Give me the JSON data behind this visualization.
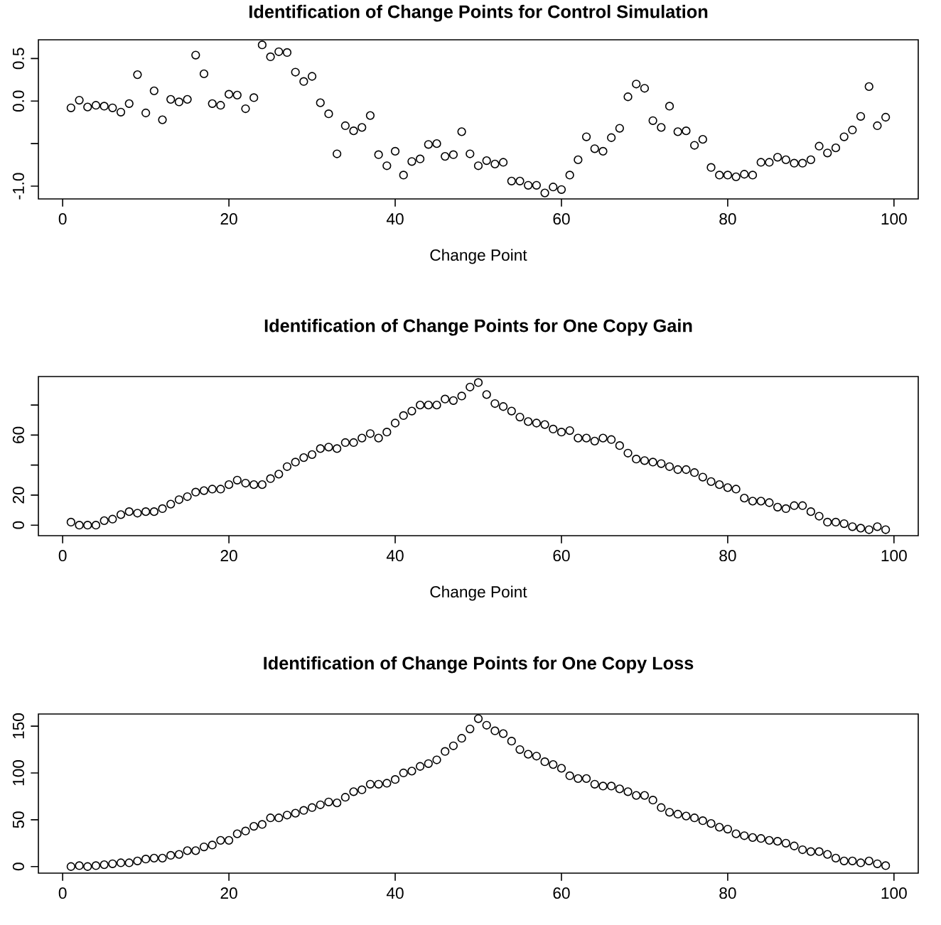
{
  "chart_data": [
    {
      "type": "scatter",
      "title": "Identification of Change Points for Control Simulation",
      "xlabel": "Change Point",
      "marker": "circle",
      "color": "#000000",
      "x": [
        1,
        2,
        3,
        4,
        5,
        6,
        7,
        8,
        9,
        10,
        11,
        12,
        13,
        14,
        15,
        16,
        17,
        18,
        19,
        20,
        21,
        22,
        23,
        24,
        25,
        26,
        27,
        28,
        29,
        30,
        31,
        32,
        33,
        34,
        35,
        36,
        37,
        38,
        39,
        40,
        41,
        42,
        43,
        44,
        45,
        46,
        47,
        48,
        49,
        50,
        51,
        52,
        53,
        54,
        55,
        56,
        57,
        58,
        59,
        60,
        61,
        62,
        63,
        64,
        65,
        66,
        67,
        68,
        69,
        70,
        71,
        72,
        73,
        74,
        75,
        76,
        77,
        78,
        79,
        80,
        81,
        82,
        83,
        84,
        85,
        86,
        87,
        88,
        89,
        90,
        91,
        92,
        93,
        94,
        95,
        96,
        97,
        98,
        99
      ],
      "values": [
        -0.08,
        0.01,
        -0.07,
        -0.05,
        -0.06,
        -0.08,
        -0.13,
        -0.03,
        0.31,
        -0.14,
        0.12,
        -0.22,
        0.02,
        -0.01,
        0.02,
        0.54,
        0.32,
        -0.03,
        -0.05,
        0.08,
        0.07,
        -0.09,
        0.04,
        0.66,
        0.52,
        0.58,
        0.57,
        0.34,
        0.23,
        0.29,
        -0.02,
        -0.15,
        -0.62,
        -0.29,
        -0.35,
        -0.31,
        -0.17,
        -0.63,
        -0.76,
        -0.59,
        -0.87,
        -0.71,
        -0.68,
        -0.51,
        -0.5,
        -0.65,
        -0.63,
        -0.36,
        -0.62,
        -0.76,
        -0.7,
        -0.74,
        -0.72,
        -0.94,
        -0.94,
        -0.99,
        -0.99,
        -1.08,
        -1.01,
        -1.04,
        -0.87,
        -0.69,
        -0.42,
        -0.56,
        -0.59,
        -0.43,
        -0.32,
        0.05,
        0.2,
        0.15,
        -0.23,
        -0.31,
        -0.06,
        -0.36,
        -0.35,
        -0.52,
        -0.45,
        -0.78,
        -0.87,
        -0.87,
        -0.89,
        -0.86,
        -0.87,
        -0.72,
        -0.72,
        -0.66,
        -0.69,
        -0.73,
        -0.73,
        -0.69,
        -0.53,
        -0.61,
        -0.55,
        -0.42,
        -0.34,
        -0.18,
        0.17,
        -0.29,
        -0.19
      ],
      "xlim": [
        -2.92,
        102.92
      ],
      "ylim": [
        -1.15,
        0.72
      ],
      "xticks": [
        0,
        20,
        40,
        60,
        80,
        100
      ],
      "yticks": [
        {
          "value": -1,
          "label": "-1.0"
        },
        {
          "value": -0.5,
          "label": null
        },
        {
          "value": 0,
          "label": "0.0"
        },
        {
          "value": 0.5,
          "label": "0.5"
        }
      ]
    },
    {
      "type": "scatter",
      "title": "Identification of Change Points for One Copy Gain",
      "xlabel": "Change Point",
      "marker": "circle",
      "color": "#000000",
      "x": [
        1,
        2,
        3,
        4,
        5,
        6,
        7,
        8,
        9,
        10,
        11,
        12,
        13,
        14,
        15,
        16,
        17,
        18,
        19,
        20,
        21,
        22,
        23,
        24,
        25,
        26,
        27,
        28,
        29,
        30,
        31,
        32,
        33,
        34,
        35,
        36,
        37,
        38,
        39,
        40,
        41,
        42,
        43,
        44,
        45,
        46,
        47,
        48,
        49,
        50,
        51,
        52,
        53,
        54,
        55,
        56,
        57,
        58,
        59,
        60,
        61,
        62,
        63,
        64,
        65,
        66,
        67,
        68,
        69,
        70,
        71,
        72,
        73,
        74,
        75,
        76,
        77,
        78,
        79,
        80,
        81,
        82,
        83,
        84,
        85,
        86,
        87,
        88,
        89,
        90,
        91,
        92,
        93,
        94,
        95,
        96,
        97,
        98,
        99
      ],
      "values": [
        2,
        0,
        0,
        0,
        3,
        4,
        7,
        9,
        8,
        9,
        9,
        11,
        14,
        17,
        19,
        22,
        23,
        24,
        24,
        27,
        30,
        28,
        27,
        27,
        31,
        34,
        39,
        42,
        45,
        47,
        51,
        52,
        51,
        55,
        55,
        58,
        61,
        58,
        62,
        68,
        73,
        76,
        80,
        80,
        80,
        84,
        83,
        86,
        92,
        95,
        87,
        81,
        79,
        76,
        72,
        69,
        68,
        67,
        64,
        62,
        63,
        58,
        58,
        56,
        58,
        57,
        53,
        48,
        44,
        43,
        42,
        41,
        39,
        37,
        37,
        35,
        32,
        29,
        27,
        25,
        24,
        18,
        16,
        16,
        15,
        12,
        11,
        13,
        13,
        9,
        6,
        2,
        2,
        1,
        -1,
        -2,
        -3,
        -1,
        -3
      ],
      "xlim": [
        -2.92,
        102.92
      ],
      "ylim": [
        -7,
        99
      ],
      "xticks": [
        0,
        20,
        40,
        60,
        80,
        100
      ],
      "yticks": [
        0,
        20,
        {
          "value": 40,
          "label": null
        },
        60,
        {
          "value": 80,
          "label": null
        }
      ]
    },
    {
      "type": "scatter",
      "title": "Identification of Change Points for One Copy Loss",
      "marker": "circle",
      "color": "#000000",
      "x": [
        1,
        2,
        3,
        4,
        5,
        6,
        7,
        8,
        9,
        10,
        11,
        12,
        13,
        14,
        15,
        16,
        17,
        18,
        19,
        20,
        21,
        22,
        23,
        24,
        25,
        26,
        27,
        28,
        29,
        30,
        31,
        32,
        33,
        34,
        35,
        36,
        37,
        38,
        39,
        40,
        41,
        42,
        43,
        44,
        45,
        46,
        47,
        48,
        49,
        50,
        51,
        52,
        53,
        54,
        55,
        56,
        57,
        58,
        59,
        60,
        61,
        62,
        63,
        64,
        65,
        66,
        67,
        68,
        69,
        70,
        71,
        72,
        73,
        74,
        75,
        76,
        77,
        78,
        79,
        80,
        81,
        82,
        83,
        84,
        85,
        86,
        87,
        88,
        89,
        90,
        91,
        92,
        93,
        94,
        95,
        96,
        97,
        98,
        99
      ],
      "values": [
        0,
        1,
        0,
        1,
        2,
        3,
        4,
        4,
        6,
        8,
        9,
        9,
        12,
        13,
        17,
        17,
        21,
        23,
        28,
        28,
        35,
        38,
        43,
        45,
        52,
        52,
        55,
        57,
        60,
        63,
        66,
        69,
        68,
        74,
        80,
        82,
        88,
        88,
        89,
        93,
        100,
        102,
        107,
        110,
        114,
        123,
        129,
        137,
        147,
        158,
        151,
        145,
        142,
        134,
        125,
        120,
        118,
        112,
        109,
        105,
        97,
        94,
        94,
        88,
        86,
        86,
        83,
        80,
        76,
        76,
        71,
        63,
        58,
        56,
        54,
        52,
        49,
        46,
        42,
        40,
        35,
        33,
        31,
        30,
        28,
        27,
        25,
        22,
        18,
        16,
        16,
        13,
        9,
        6,
        6,
        4,
        6,
        3,
        1
      ],
      "xlim": [
        -2.92,
        102.92
      ],
      "ylim": [
        -7,
        163
      ],
      "xticks": [
        0,
        20,
        40,
        60,
        80,
        100
      ],
      "yticks": [
        0,
        50,
        100,
        150
      ]
    }
  ]
}
